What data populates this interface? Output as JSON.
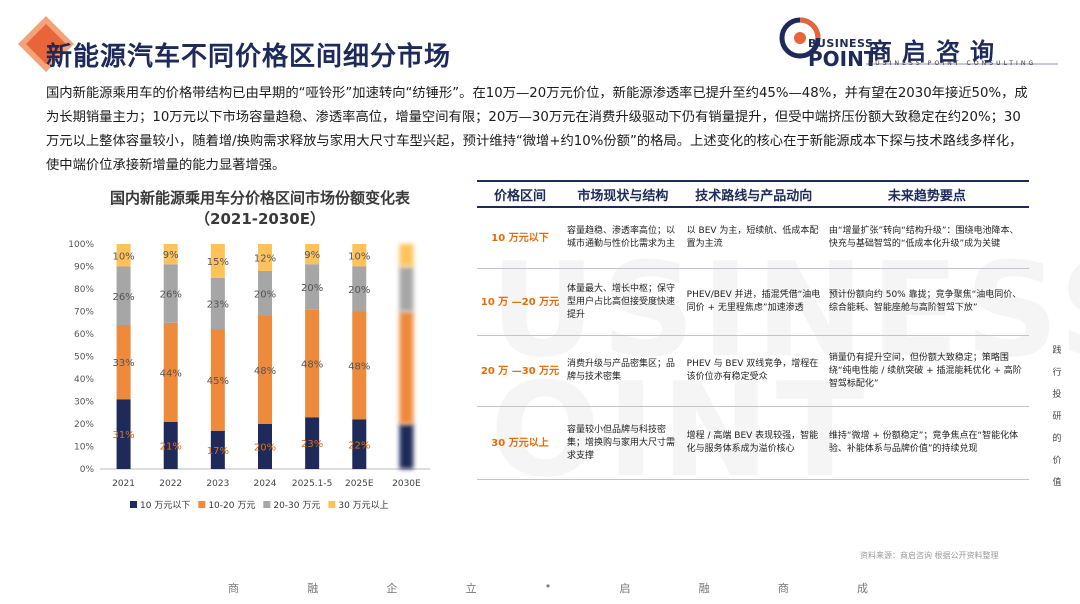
{
  "title": "新能源汽车不同价格区间细分市场",
  "logo": {
    "line1": "BUSINESS",
    "line2": "POINT",
    "cn": "商启咨询",
    "sub": "BUSINESS POINT CONSULTING"
  },
  "intro": "国内新能源乘用车的价格带结构已由早期的“哑铃形”加速转向“纺锤形”。在10万—20万元价位，新能源渗透率已提升至约45%—48%，并有望在2030年接近50%，成为长期销量主力；10万元以下市场容量趋稳、渗透率高位，增量空间有限；20万—30万元在消费升级驱动下仍有销量提升，但受中端挤压份额大致稳定在约20%；30万元以上整体容量较小，随着增/换购需求释放与家用大尺寸车型兴起，预计维持“微增+约10%份额”的格局。上述变化的核心在于新能源成本下探与技术路线多样化，使中端价位承接新增量的能力显著增强。",
  "colors": {
    "s1": "#1e2b5a",
    "s2": "#ee8a3c",
    "s3": "#a6a6a6",
    "s4": "#fdc35a",
    "accent": "#e46c0a"
  },
  "chart_data": {
    "type": "bar",
    "stacked": true,
    "title": "国内新能源乘用车分价格区间市场份额变化表（2021-2030E）",
    "categories": [
      "2021",
      "2022",
      "2023",
      "2024",
      "2025.1-5",
      "2025E",
      "2030E"
    ],
    "series": [
      {
        "name": "10 万元以下",
        "values": [
          31,
          21,
          17,
          20,
          23,
          22,
          20
        ]
      },
      {
        "name": "10-20 万元",
        "values": [
          33,
          44,
          45,
          48,
          48,
          48,
          50
        ]
      },
      {
        "name": "20-30 万元",
        "values": [
          26,
          26,
          23,
          20,
          20,
          20,
          20
        ]
      },
      {
        "name": "30 万元以上",
        "values": [
          10,
          9,
          15,
          12,
          9,
          10,
          10
        ]
      }
    ],
    "labels": [
      [
        "31%",
        "21%",
        "17%",
        "20%",
        "23%",
        "22%"
      ],
      [
        "33%",
        "44%",
        "45%",
        "48%",
        "48%",
        "48%"
      ],
      [
        "26%",
        "26%",
        "23%",
        "20%",
        "20%",
        "20%"
      ],
      [
        "10%",
        "9%",
        "15%",
        "12%",
        "9%",
        "10%"
      ]
    ],
    "yticks": [
      "0%",
      "10%",
      "20%",
      "30%",
      "40%",
      "50%",
      "60%",
      "70%",
      "80%",
      "90%",
      "100%"
    ],
    "ylim": [
      0,
      100
    ],
    "legend_position": "bottom"
  },
  "table": {
    "headers": [
      "价格区间",
      "市场现状与结构",
      "技术路线与产品动向",
      "未来趋势要点"
    ],
    "rows": [
      {
        "seg": "10 万元以下",
        "status": "容量趋稳、渗透率高位；以城市通勤与性价比需求为主",
        "tech": "以 BEV 为主，短续航、低成本配置为主流",
        "trend": "由“增量扩张”转向“结构升级”：围绕电池降本、快充与基础智驾的“低成本化升级”成为关键"
      },
      {
        "seg": "10 万 —20 万元",
        "status": "体量最大、增长中枢；保守型用户占比高但接受度快速提升",
        "tech": "PHEV/BEV 并进，插混凭借“油电同价 + 无里程焦虑”加速渗透",
        "trend": "预计份额向约 50% 靠拢；竞争聚焦“油电同价、综合能耗、智能座舱与高阶智驾下放”"
      },
      {
        "seg": "20 万 —30 万元",
        "status": "消费升级与产品密集区；品牌与技术密集",
        "tech": "PHEV 与 BEV 双线竞争，增程在该价位亦有稳定受众",
        "trend": "销量仍有提升空间，但份额大致稳定；策略围绕“纯电性能 / 续航突破 + 插混能耗优化 + 高阶智驾标配化”"
      },
      {
        "seg": "30 万元以上",
        "status": "容量较小但品牌与科技密集；增换购与家用大尺寸需求支撑",
        "tech": "增程 / 高端 BEV 表现较强，智能化与服务体系成为溢价核心",
        "trend": "维持“微增 + 份额稳定”；竞争焦点在“智能化体验、补能体系与品牌价值”的持续兑现"
      }
    ]
  },
  "vertical_text": [
    "践",
    "行",
    "投",
    "研",
    "的",
    "价",
    "值"
  ],
  "source": "资料来源：商启咨询 根据公开资料整理",
  "footer": [
    "商",
    "融",
    "企",
    "立",
    "•",
    "启",
    "融",
    "商",
    "成"
  ]
}
